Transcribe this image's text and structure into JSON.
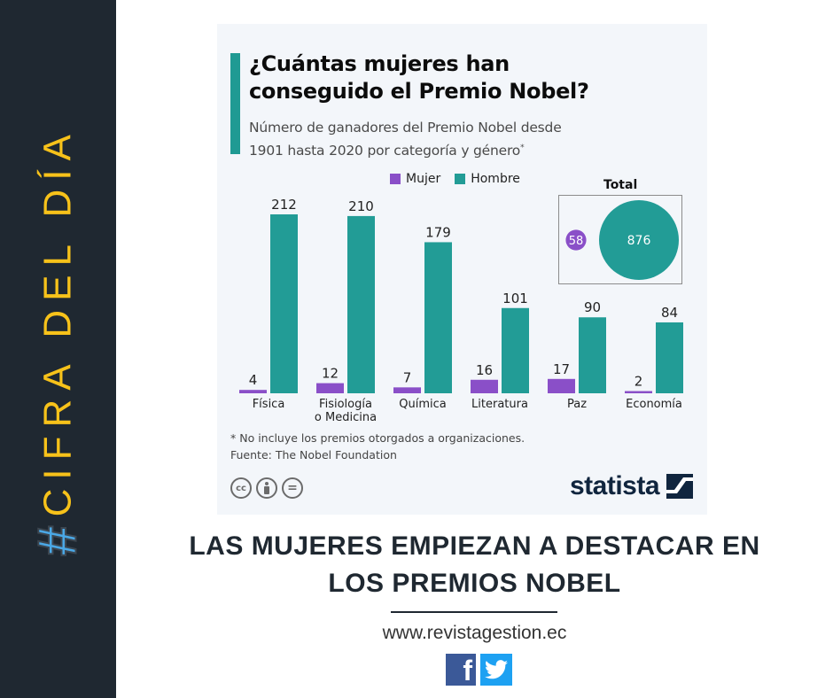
{
  "sidebar": {
    "hash": "#",
    "label": "CIFRA DEL DÍA"
  },
  "infographic": {
    "title_line1": "¿Cuántas mujeres han",
    "title_line2": "conseguido el Premio Nobel?",
    "subtitle_line1": "Número de ganadores del Premio Nobel desde",
    "subtitle_line2": "1901 hasta 2020 por categoría y género",
    "subtitle_mark": "*",
    "footnote": "* No incluye los premios otorgados a organizaciones.",
    "source": "Fuente: The Nobel Foundation",
    "license_icons": [
      "cc-icon",
      "by-icon",
      "nd-icon"
    ],
    "license_labels": [
      "cc",
      "",
      "="
    ],
    "brand": "statista"
  },
  "colors": {
    "mujer": "#8a4fc8",
    "hombre": "#229c96",
    "accent_bar": "#1f9a93",
    "sidebar_bg": "#1f2831",
    "sidebar_text": "#f7c21a",
    "hash": "#4aa8e6"
  },
  "chart_data": {
    "type": "bar",
    "title": "¿Cuántas mujeres han conseguido el Premio Nobel?",
    "subtitle": "Número de ganadores del Premio Nobel desde 1901 hasta 2020 por categoría y género*",
    "categories": [
      "Física",
      "Fisiología\no Medicina",
      "Química",
      "Literatura",
      "Paz",
      "Economía"
    ],
    "series": [
      {
        "name": "Mujer",
        "values": [
          4,
          12,
          7,
          16,
          17,
          2
        ]
      },
      {
        "name": "Hombre",
        "values": [
          212,
          210,
          179,
          101,
          90,
          84
        ]
      }
    ],
    "legend": [
      "Mujer",
      "Hombre"
    ],
    "legend_position": "top",
    "ylim": [
      0,
      212
    ],
    "grid": false,
    "total": {
      "title": "Total",
      "mujer": 58,
      "hombre": 876
    }
  },
  "footer": {
    "headline_line1": "LAS MUJERES EMPIEZAN A DESTACAR EN",
    "headline_line2": "LOS PREMIOS NOBEL",
    "website": "www.revistagestion.ec",
    "social": [
      "facebook-icon",
      "twitter-icon"
    ]
  }
}
